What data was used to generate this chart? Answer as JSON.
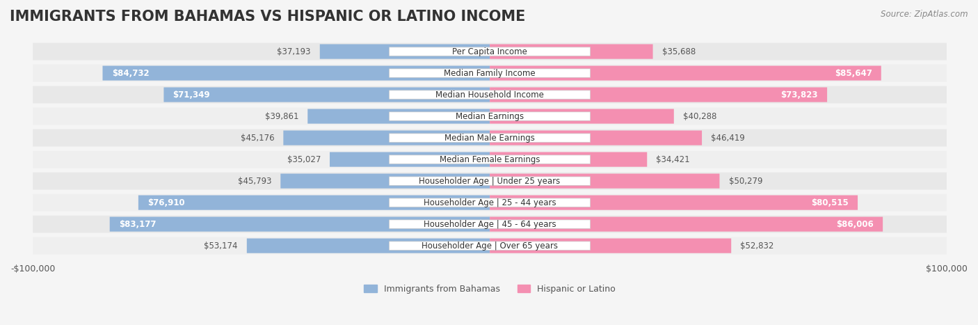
{
  "title": "IMMIGRANTS FROM BAHAMAS VS HISPANIC OR LATINO INCOME",
  "source": "Source: ZipAtlas.com",
  "categories": [
    "Per Capita Income",
    "Median Family Income",
    "Median Household Income",
    "Median Earnings",
    "Median Male Earnings",
    "Median Female Earnings",
    "Householder Age | Under 25 years",
    "Householder Age | 25 - 44 years",
    "Householder Age | 45 - 64 years",
    "Householder Age | Over 65 years"
  ],
  "bahamas_values": [
    37193,
    84732,
    71349,
    39861,
    45176,
    35027,
    45793,
    76910,
    83177,
    53174
  ],
  "hispanic_values": [
    35688,
    85647,
    73823,
    40288,
    46419,
    34421,
    50279,
    80515,
    86006,
    52832
  ],
  "bahamas_color": "#92B4D9",
  "hispanic_color": "#F48FB1",
  "bahamas_label": "Immigrants from Bahamas",
  "hispanic_label": "Hispanic or Latino",
  "max_value": 100000,
  "background_color": "#f5f5f5",
  "row_bg_color": "#e8e8e8",
  "row_alt_color": "#f0f0f0",
  "label_box_color": "#ffffff",
  "label_box_edge": "#cccccc",
  "x_tick_labels": [
    "-$100,000",
    "$100,000"
  ],
  "title_fontsize": 15,
  "label_fontsize": 8.5,
  "value_fontsize": 8.5,
  "legend_fontsize": 9
}
